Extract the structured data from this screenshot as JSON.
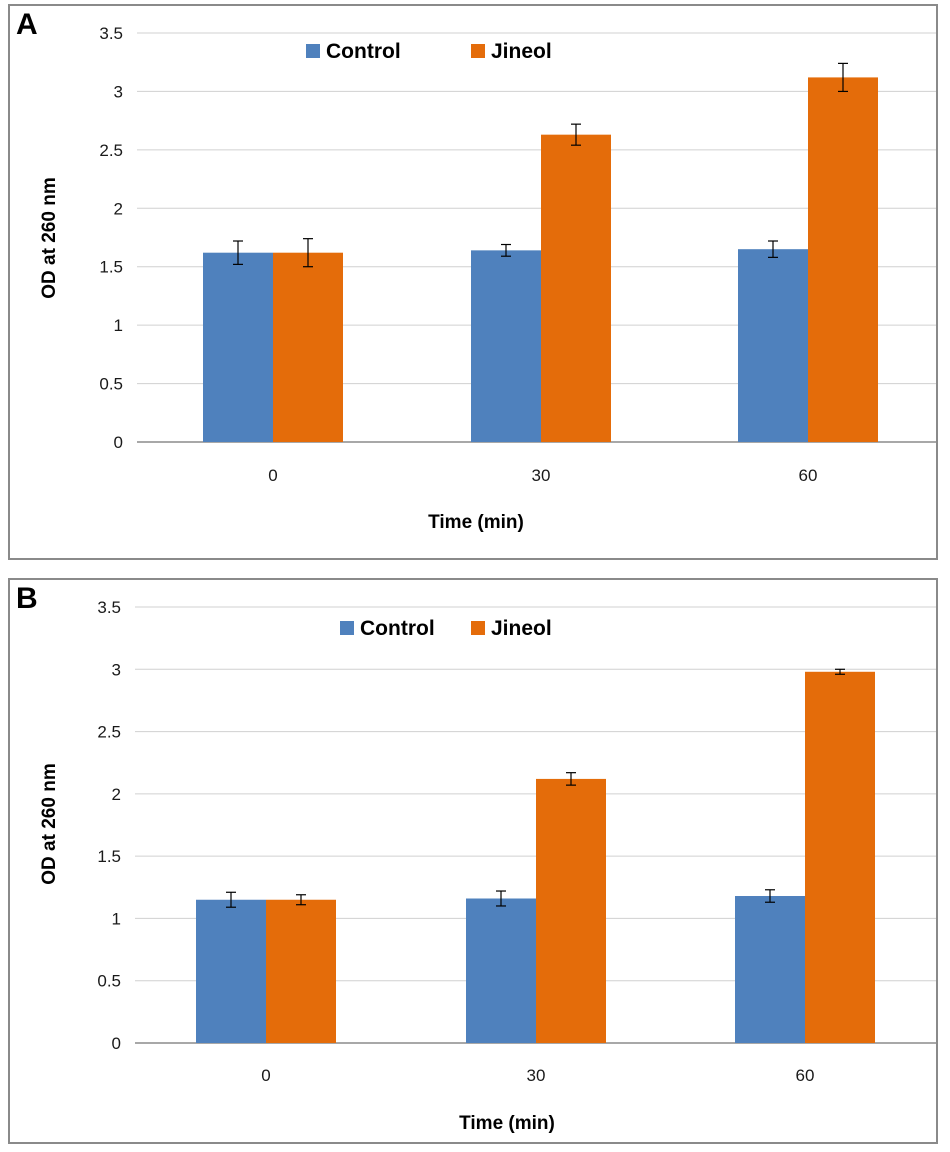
{
  "chart_data": [
    {
      "panel_label": "A",
      "type": "bar",
      "categories": [
        "0",
        "30",
        "60"
      ],
      "series": [
        {
          "name": "Control",
          "color": "#4f81bd",
          "values": [
            1.62,
            1.64,
            1.65
          ],
          "errors": [
            0.1,
            0.05,
            0.07
          ]
        },
        {
          "name": "Jineol",
          "color": "#e46c0a",
          "values": [
            1.62,
            2.63,
            3.12
          ],
          "errors": [
            0.12,
            0.09,
            0.12
          ]
        }
      ],
      "title": "",
      "xlabel": "Time (min)",
      "ylabel": "OD at 260 nm",
      "ylim": [
        0,
        3.5
      ],
      "yticks": [
        0,
        0.5,
        1,
        1.5,
        2,
        2.5,
        3,
        3.5
      ],
      "ytick_labels": [
        "0",
        "0.5",
        "1",
        "1.5",
        "2",
        "2.5",
        "3",
        "3.5"
      ],
      "grid": true,
      "legend_position": "top-center"
    },
    {
      "panel_label": "B",
      "type": "bar",
      "categories": [
        "0",
        "30",
        "60"
      ],
      "series": [
        {
          "name": "Control",
          "color": "#4f81bd",
          "values": [
            1.15,
            1.16,
            1.18
          ],
          "errors": [
            0.06,
            0.06,
            0.05
          ]
        },
        {
          "name": "Jineol",
          "color": "#e46c0a",
          "values": [
            1.15,
            2.12,
            2.98
          ],
          "errors": [
            0.04,
            0.05,
            0.02
          ]
        }
      ],
      "title": "",
      "xlabel": "Time (min)",
      "ylabel": "OD at 260 nm",
      "ylim": [
        0,
        3.5
      ],
      "yticks": [
        0,
        0.5,
        1,
        1.5,
        2,
        2.5,
        3,
        3.5
      ],
      "ytick_labels": [
        "0",
        "0.5",
        "1",
        "1.5",
        "2",
        "2.5",
        "3",
        "3.5"
      ],
      "grid": true,
      "legend_position": "top-center"
    }
  ]
}
